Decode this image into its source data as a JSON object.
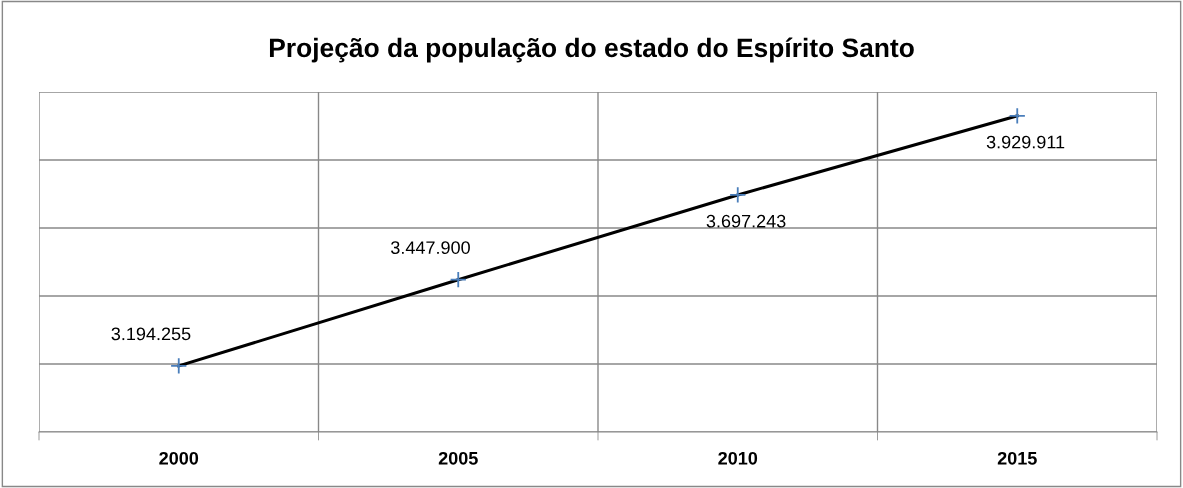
{
  "chart_data": {
    "type": "line",
    "title": "Projeção da população do estado do Espírito Santo",
    "categories": [
      "2000",
      "2005",
      "2010",
      "2015"
    ],
    "series": [
      {
        "color": "#000000",
        "colors": [
          "#4a7ebb",
          "#4a7ebb",
          "#4a7ebb",
          "#4a7ebb"
        ],
        "values": [
          3194255,
          3447900,
          3697243,
          3929911
        ],
        "value_labels": [
          "3.194.255",
          "3.447.900",
          "3.697.243",
          "3.929.911"
        ]
      }
    ],
    "ylim": [
      3000000,
      4000000
    ],
    "yticks": [
      {
        "value": 3000000,
        "label": null
      },
      {
        "value": 3200000,
        "label": null
      },
      {
        "value": 3400000,
        "label": null
      },
      {
        "value": 3600000,
        "label": null
      },
      {
        "value": 3800000,
        "label": null
      },
      {
        "value": 4000000,
        "label": null
      }
    ],
    "tick_labels": "x",
    "grid": true,
    "marker": "cross",
    "line_style": "solid",
    "legend": false
  }
}
